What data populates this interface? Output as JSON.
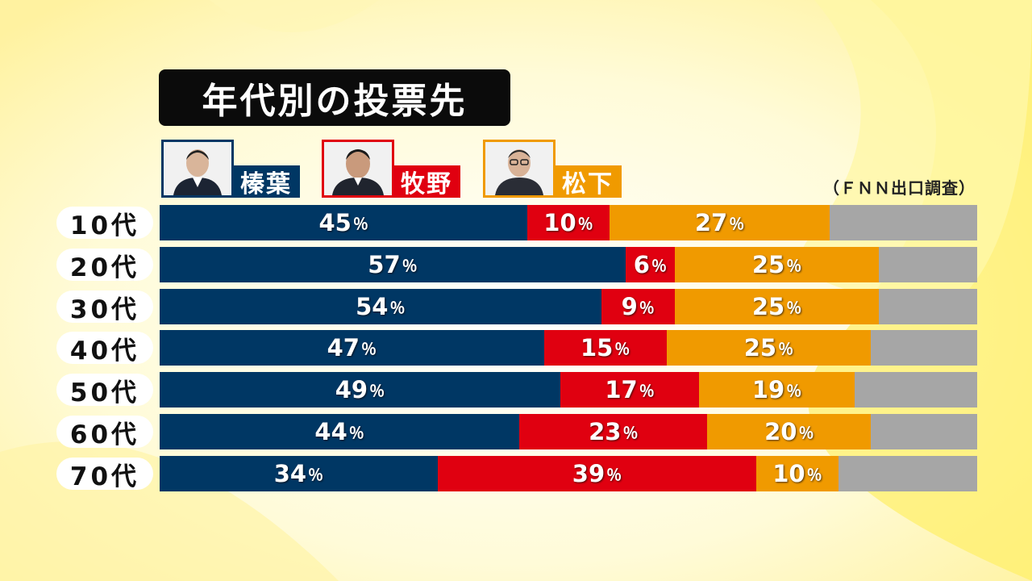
{
  "title": "年代別の投票先",
  "source": "（ＦＮＮ出口調査）",
  "colors": {
    "秦葉": "#003764",
    "牧野": "#e00010",
    "松下": "#f09a00",
    "other": "#a6a6a6"
  },
  "candidates": [
    {
      "name": "榛葉",
      "color": "#003764"
    },
    {
      "name": "牧野",
      "color": "#e00010"
    },
    {
      "name": "松下",
      "color": "#f09a00"
    }
  ],
  "percent_suffix": "％",
  "chart_data": {
    "type": "bar",
    "stacked": true,
    "orientation": "horizontal",
    "title": "年代別の投票先",
    "categories": [
      "10代",
      "20代",
      "30代",
      "40代",
      "50代",
      "60代",
      "70代"
    ],
    "series": [
      {
        "name": "榛葉",
        "color": "#003764",
        "values": [
          45,
          57,
          54,
          47,
          49,
          44,
          34
        ]
      },
      {
        "name": "牧野",
        "color": "#e00010",
        "values": [
          10,
          6,
          9,
          15,
          17,
          23,
          39
        ]
      },
      {
        "name": "松下",
        "color": "#f09a00",
        "values": [
          27,
          25,
          25,
          25,
          19,
          20,
          10
        ]
      }
    ],
    "xlim": [
      0,
      100
    ],
    "unit": "％"
  }
}
